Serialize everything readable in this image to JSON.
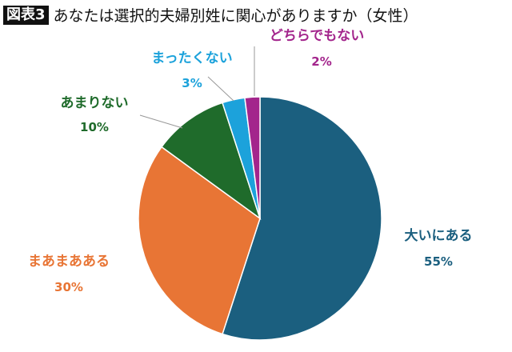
{
  "chart_data": {
    "type": "pie",
    "title_badge": "図表3",
    "title": "あなたは選択的夫婦別姓に関心がありますか（女性）",
    "slices": [
      {
        "label": "大いにある",
        "value": 55,
        "value_label": "55%",
        "color": "#1b5f7f"
      },
      {
        "label": "まあまあある",
        "value": 30,
        "value_label": "30%",
        "color": "#e87535"
      },
      {
        "label": "あまりない",
        "value": 10,
        "value_label": "10%",
        "color": "#1f6b2b"
      },
      {
        "label": "まったくない",
        "value": 3,
        "value_label": "3%",
        "color": "#1ca2db"
      },
      {
        "label": "どちらでもない",
        "value": 2,
        "value_label": "2%",
        "color": "#a3258c"
      }
    ],
    "start": "top",
    "direction": "clockwise"
  }
}
